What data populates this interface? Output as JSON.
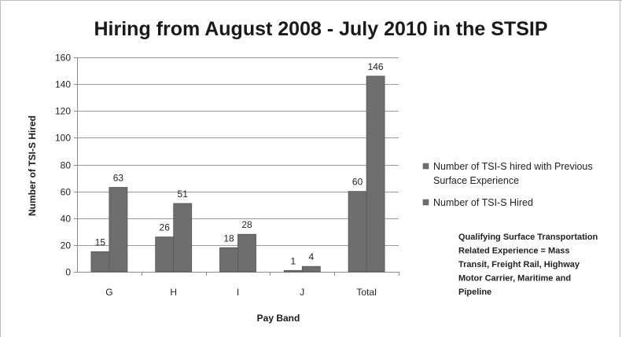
{
  "chart_data": {
    "type": "bar",
    "title": "Hiring from August 2008 - July 2010 in the STSIP",
    "xlabel": "Pay Band",
    "ylabel": "Number of TSI-S Hired",
    "ylim": [
      0,
      160
    ],
    "yticks": [
      0,
      20,
      40,
      60,
      80,
      100,
      120,
      140,
      160
    ],
    "grid": true,
    "legend_position": "right",
    "categories": [
      "G",
      "H",
      "I",
      "J",
      "Total"
    ],
    "series": [
      {
        "name": "Number of TSI-S hired with Previous Surface Experience",
        "legend_lines": [
          "Number of TSI-S hired with Previous",
          "Surface Experience"
        ],
        "values": [
          15,
          26,
          18,
          1,
          60
        ],
        "color": "#6e6e6e"
      },
      {
        "name": "Number of TSI-S Hired",
        "legend_lines": [
          "Number of TSI-S Hired"
        ],
        "values": [
          63,
          51,
          28,
          4,
          146
        ],
        "color": "#6e6e6e"
      }
    ],
    "annotation": {
      "text": "Qualifying Surface Transportation Related Experience = Mass Transit, Freight Rail, Highway Motor Carrier, Maritime and Pipeline",
      "lines": [
        "Qualifying Surface Transportation",
        "Related Experience = Mass",
        "Transit, Freight Rail, Highway",
        "Motor Carrier, Maritime and",
        "Pipeline"
      ]
    }
  }
}
